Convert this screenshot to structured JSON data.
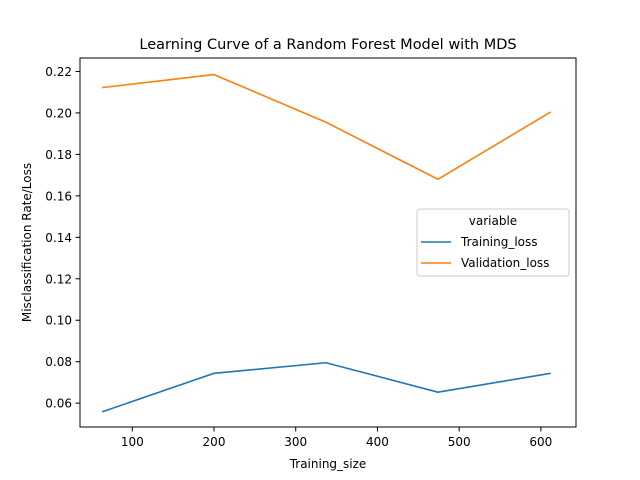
{
  "chart_data": {
    "type": "line",
    "title": "Learning Curve of a Random Forest Model with MDS",
    "xlabel": "Training_size",
    "ylabel": "Misclassification Rate/Loss",
    "xlim": [
      36,
      643
    ],
    "ylim": [
      0.0485,
      0.2265
    ],
    "xticks": [
      100,
      200,
      300,
      400,
      500,
      600
    ],
    "yticks": [
      0.06,
      0.08,
      0.1,
      0.12,
      0.14,
      0.16,
      0.18,
      0.2,
      0.22
    ],
    "ytick_labels": [
      "0.06",
      "0.08",
      "0.10",
      "0.12",
      "0.14",
      "0.16",
      "0.18",
      "0.20",
      "0.22"
    ],
    "grid": false,
    "legend": {
      "title": "variable",
      "placement": "center-right"
    },
    "x": [
      63,
      200,
      337,
      474,
      612
    ],
    "series": [
      {
        "name": "Training_loss",
        "color": "#1f77b4",
        "values": [
          0.0558,
          0.0744,
          0.0795,
          0.0653,
          0.0744
        ]
      },
      {
        "name": "Validation_loss",
        "color": "#ff7f0e",
        "values": [
          0.2122,
          0.2185,
          0.1955,
          0.168,
          0.2005
        ]
      }
    ]
  }
}
